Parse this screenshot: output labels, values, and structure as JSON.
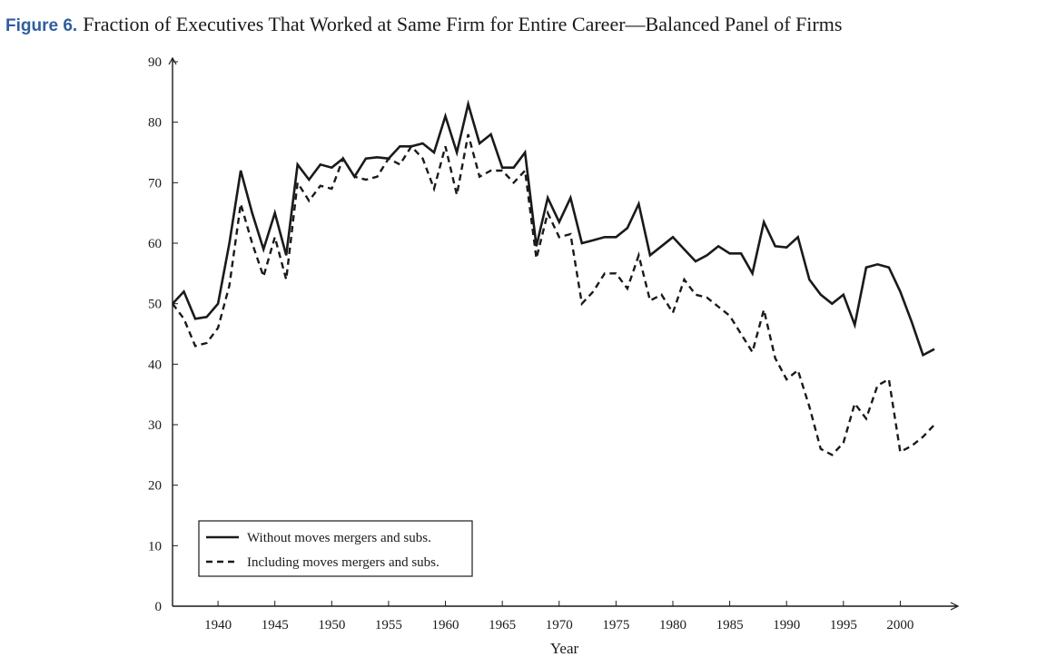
{
  "figure": {
    "label": "Figure 6.",
    "title": "Fraction of Executives That Worked at Same Firm for Entire Career—Balanced Panel of Firms"
  },
  "chart_data": {
    "type": "line",
    "xlabel": "Year",
    "ylabel": "",
    "xlim": [
      1936,
      2003
    ],
    "ylim": [
      0,
      90
    ],
    "xticks": [
      1940,
      1945,
      1950,
      1955,
      1960,
      1965,
      1970,
      1975,
      1980,
      1985,
      1990,
      1995,
      2000
    ],
    "yticks": [
      0,
      10,
      20,
      30,
      40,
      50,
      60,
      70,
      80,
      90
    ],
    "legend_position": "bottom-left",
    "x": [
      1936,
      1937,
      1938,
      1939,
      1940,
      1941,
      1942,
      1943,
      1944,
      1945,
      1946,
      1947,
      1948,
      1949,
      1950,
      1951,
      1952,
      1953,
      1954,
      1955,
      1956,
      1957,
      1958,
      1959,
      1960,
      1961,
      1962,
      1963,
      1964,
      1965,
      1966,
      1967,
      1968,
      1969,
      1970,
      1971,
      1972,
      1973,
      1974,
      1975,
      1976,
      1977,
      1978,
      1979,
      1980,
      1981,
      1982,
      1983,
      1984,
      1985,
      1986,
      1987,
      1988,
      1989,
      1990,
      1991,
      1992,
      1993,
      1994,
      1995,
      1996,
      1997,
      1998,
      1999,
      2000,
      2001,
      2002,
      2003
    ],
    "series": [
      {
        "name": "Without moves mergers and subs.",
        "style": "solid",
        "values": [
          50,
          52,
          47.5,
          47.8,
          50,
          60,
          72,
          65,
          59,
          65,
          58,
          73,
          70.5,
          73,
          72.5,
          74,
          71,
          74,
          74.2,
          74,
          76,
          76,
          76.5,
          75,
          81,
          75,
          83,
          76.5,
          78,
          72.5,
          72.5,
          75,
          59.5,
          67.5,
          63.5,
          67.5,
          60,
          60.5,
          61,
          61,
          62.5,
          66.5,
          58,
          59.5,
          61,
          59,
          57,
          58,
          59.5,
          58.3,
          58.3,
          55,
          63.5,
          59.5,
          59.3,
          61,
          54,
          51.5,
          50,
          51.5,
          46.5,
          56,
          56.5,
          56,
          52,
          47,
          41.5,
          42.5
        ]
      },
      {
        "name": "Including moves mergers and subs.",
        "style": "dashed",
        "values": [
          50,
          47.5,
          43,
          43.5,
          46,
          53,
          66.5,
          60,
          54.5,
          61,
          54,
          70,
          67,
          69.5,
          69,
          74,
          71,
          70.5,
          71,
          74,
          73,
          76,
          74,
          69,
          76,
          68,
          78,
          71,
          72,
          72,
          70,
          72,
          57.5,
          65,
          61,
          61.5,
          50,
          52,
          55,
          55,
          52.5,
          58,
          50.5,
          51.5,
          48.5,
          54,
          51.5,
          51,
          49.5,
          48,
          45,
          42,
          49,
          41,
          37.5,
          39,
          33,
          26,
          25,
          27,
          33.5,
          31,
          36.5,
          37.5,
          25.5,
          26.5,
          28,
          30
        ]
      }
    ]
  }
}
